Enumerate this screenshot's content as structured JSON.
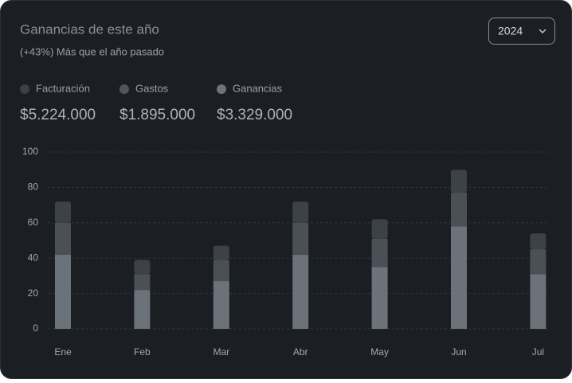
{
  "chart_data": {
    "type": "stacked-bar",
    "title": "Ganancias de este año",
    "subtitle": "(+43%) Más que el año pasado",
    "year_selector": "2024",
    "categories": [
      "Ene",
      "Feb",
      "Mar",
      "Abr",
      "May",
      "Jun",
      "Jul"
    ],
    "series": [
      {
        "name": "Ganancias",
        "color": "#6c727a",
        "legend_color": "#6e737a",
        "total": "$3.329.000",
        "values": [
          42,
          22,
          27,
          42,
          35,
          58,
          31
        ]
      },
      {
        "name": "Gastos",
        "color": "#4b5057",
        "legend_color": "#51565d",
        "total": "$1.895.000",
        "values": [
          18,
          9,
          12,
          18,
          16,
          19,
          14
        ]
      },
      {
        "name": "Facturación",
        "color": "#3d4248",
        "legend_color": "#3c4147",
        "total": "$5.224.000",
        "values": [
          12,
          8,
          8,
          12,
          11,
          13,
          9
        ]
      }
    ],
    "legend_order": [
      2,
      1,
      0
    ],
    "ylim": [
      0,
      100
    ],
    "yticks": [
      0,
      20,
      40,
      60,
      80,
      100
    ],
    "grid": true
  }
}
